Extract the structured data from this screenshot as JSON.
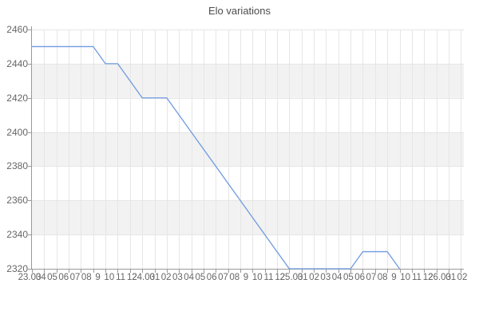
{
  "chart_data": {
    "type": "line",
    "title": "Elo variations",
    "x_labels": [
      "23.03",
      "04",
      "05",
      "06",
      "07",
      "08",
      "9",
      "10",
      "11",
      "12",
      "24.03",
      "01",
      "02",
      "03",
      "04",
      "05",
      "06",
      "07",
      "08",
      "9",
      "10",
      "11",
      "12",
      "25.03",
      "01",
      "02",
      "03",
      "04",
      "05",
      "06",
      "07",
      "08",
      "9",
      "10",
      "11",
      "12",
      "26.03",
      "01",
      "02"
    ],
    "y_tick_labels": [
      "2460",
      "2440",
      "2420",
      "2400",
      "2380",
      "2360",
      "2340",
      "2320"
    ],
    "ylim": [
      2320,
      2460
    ],
    "series": [
      {
        "name": "Elo",
        "values": [
          2450,
          2450,
          2450,
          2450,
          2450,
          2450,
          2440,
          2440,
          2430,
          2420,
          2420,
          2420,
          2410,
          2400,
          2390,
          2380,
          2370,
          2360,
          2350,
          2340,
          2330,
          2320,
          2320,
          2320,
          2320,
          2320,
          2320,
          2330,
          2330,
          2330,
          2320
        ]
      }
    ],
    "legend": "none",
    "grid": "on",
    "alternate_row_bands": true,
    "colors": {
      "line": "#6f9ae0",
      "band": "#f2f2f2",
      "grid": "#e6e6e6",
      "axis": "#999999",
      "tick": "#999999",
      "label": "#666666",
      "title": "#4d4d4d"
    }
  }
}
